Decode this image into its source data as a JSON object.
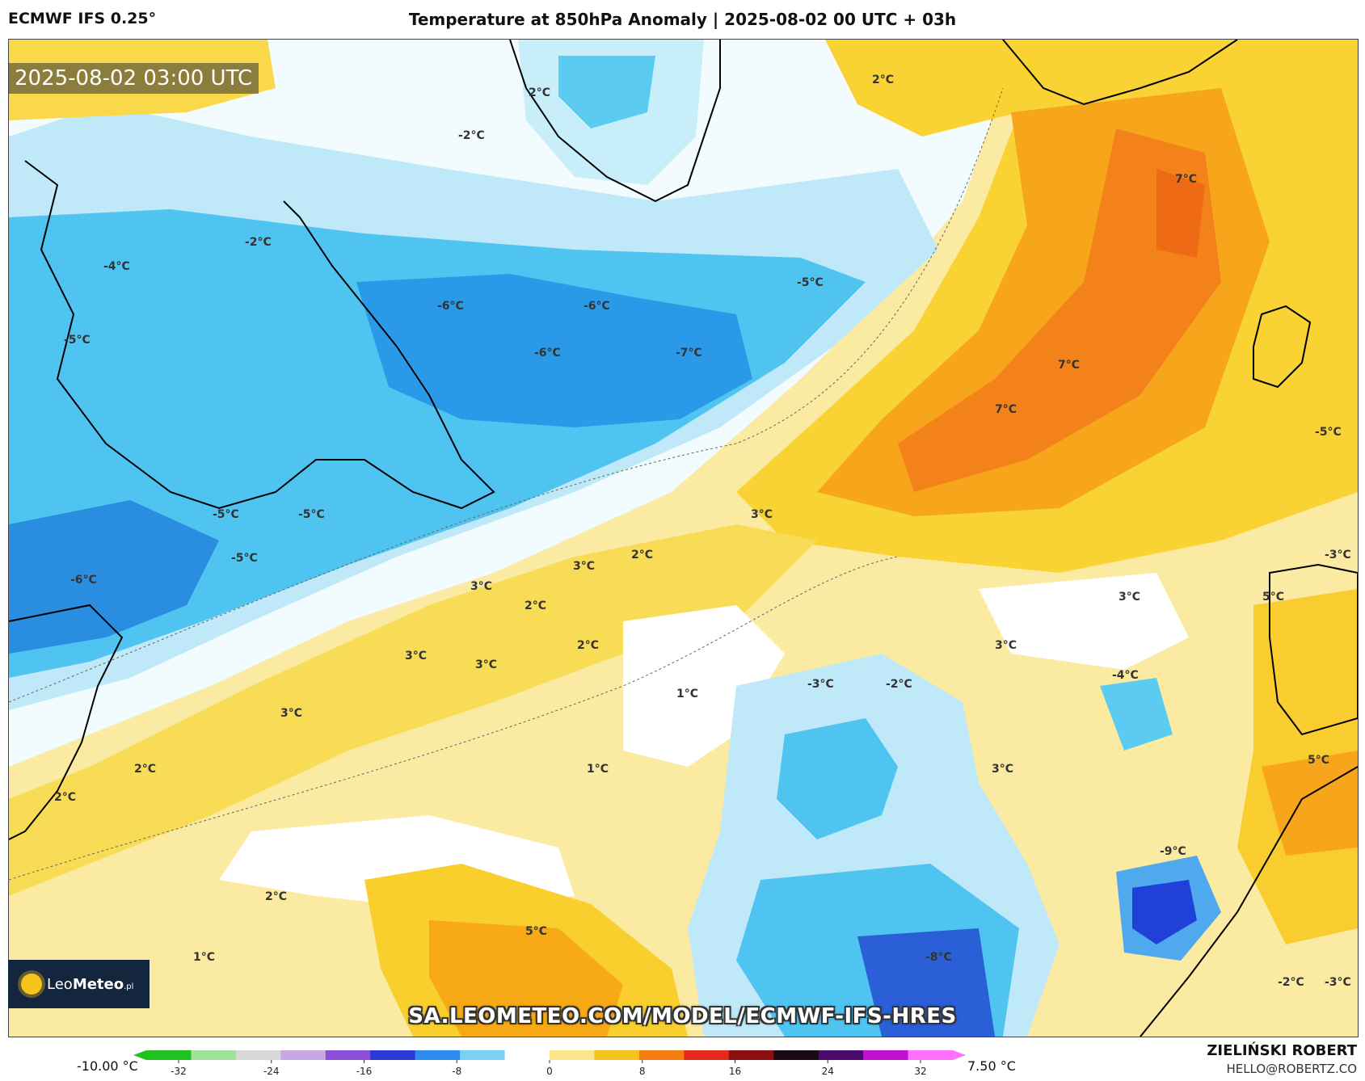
{
  "header": {
    "model": "ECMWF IFS 0.25°",
    "title": "Temperature at 850hPa Anomaly | 2025-08-02 00 UTC + 03h"
  },
  "timestamp": "2025-08-02 03:00 UTC",
  "logo": {
    "brand_light": "Leo",
    "brand_bold": "Meteo",
    "suffix": ".pl"
  },
  "url": "SA.LEOMETEO.COM/MODEL/ECMWF-IFS-HRES",
  "colorbar": {
    "min_label": "-10.00 °C",
    "max_label": "7.50 °C",
    "ticks": [
      "-32",
      "-24",
      "-16",
      "-8",
      "0",
      "8",
      "16",
      "24",
      "32"
    ],
    "colors": [
      "#1fc21f",
      "#9ee39a",
      "#d8d8d8",
      "#c8a8e0",
      "#8c4fd8",
      "#2a39d8",
      "#2e8cf0",
      "#79d2f5",
      "#ffffff",
      "#fbe58b",
      "#f8c21c",
      "#f67d10",
      "#e52a1a",
      "#8c1010",
      "#1a0a14",
      "#4a0a6a",
      "#c010d0",
      "#ff70ff"
    ]
  },
  "credit": {
    "name": "ZIELIŃSKI ROBERT",
    "email": "HELLO@ROBERTZ.CO"
  },
  "contour_labels": [
    "2°C",
    "-2°C",
    "2°C",
    "-2°C",
    "-4°C",
    "-5°C",
    "-6°C",
    "-6°C",
    "-5°C",
    "-6°C",
    "-7°C",
    "7°C",
    "7°C",
    "7°C",
    "-5°C",
    "-5°C",
    "-5°C",
    "-5°C",
    "-6°C",
    "3°C",
    "2°C",
    "3°C",
    "3°C",
    "2°C",
    "-3°C",
    "5°C",
    "3°C",
    "3°C",
    "2°C",
    "3°C",
    "3°C",
    "1°C",
    "-3°C",
    "-2°C",
    "-4°C",
    "3°C",
    "2°C",
    "2°C",
    "1°C",
    "3°C",
    "5°C",
    "-9°C",
    "2°C",
    "1°C",
    "5°C",
    "-8°C",
    "-2°C",
    "-3°C"
  ]
}
